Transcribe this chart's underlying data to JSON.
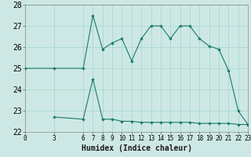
{
  "xlabel": "Humidex (Indice chaleur)",
  "background_color": "#cde8e4",
  "line_color": "#1a7a6e",
  "grid_color": "#aad8d0",
  "line1_x": [
    0,
    3,
    6,
    7,
    8,
    9,
    10,
    11,
    12,
    13,
    14,
    15,
    16,
    17,
    18,
    19,
    20,
    21,
    22,
    23
  ],
  "line1_y": [
    25.0,
    25.0,
    25.0,
    27.5,
    25.9,
    26.2,
    26.4,
    25.35,
    26.4,
    27.0,
    27.0,
    26.4,
    27.0,
    27.0,
    26.4,
    26.05,
    25.9,
    24.9,
    23.0,
    22.35
  ],
  "line2_x": [
    3,
    6,
    7,
    8,
    9,
    10,
    11,
    12,
    13,
    14,
    15,
    16,
    17,
    18,
    19,
    20,
    21,
    22,
    23
  ],
  "line2_y": [
    22.7,
    22.6,
    24.5,
    22.6,
    22.6,
    22.5,
    22.5,
    22.45,
    22.45,
    22.45,
    22.45,
    22.45,
    22.45,
    22.4,
    22.4,
    22.4,
    22.4,
    22.35,
    22.35
  ],
  "xlim": [
    0,
    23
  ],
  "ylim": [
    22,
    28
  ],
  "yticks": [
    22,
    23,
    24,
    25,
    26,
    27,
    28
  ],
  "xticks": [
    0,
    3,
    6,
    7,
    8,
    9,
    10,
    11,
    12,
    13,
    14,
    15,
    16,
    17,
    18,
    19,
    20,
    21,
    22,
    23
  ],
  "xlabel_fontsize": 7,
  "ytick_fontsize": 7,
  "xtick_fontsize": 5.5
}
